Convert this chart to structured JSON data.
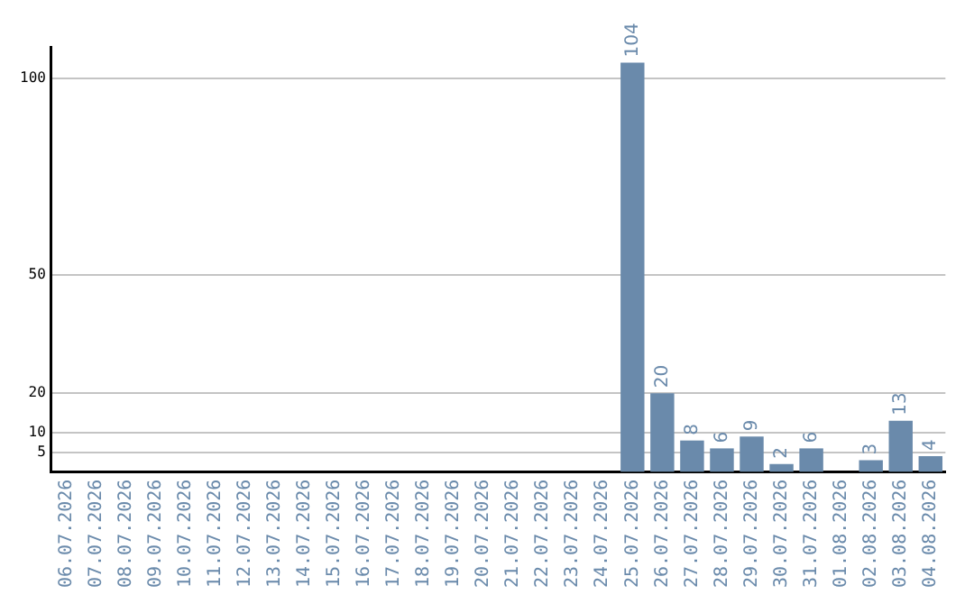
{
  "chart_data": {
    "type": "bar",
    "categories": [
      "06.07.2026",
      "07.07.2026",
      "08.07.2026",
      "09.07.2026",
      "10.07.2026",
      "11.07.2026",
      "12.07.2026",
      "13.07.2026",
      "14.07.2026",
      "15.07.2026",
      "16.07.2026",
      "17.07.2026",
      "18.07.2026",
      "19.07.2026",
      "20.07.2026",
      "21.07.2026",
      "22.07.2026",
      "23.07.2026",
      "24.07.2026",
      "25.07.2026",
      "26.07.2026",
      "27.07.2026",
      "28.07.2026",
      "29.07.2026",
      "30.07.2026",
      "31.07.2026",
      "01.08.2026",
      "02.08.2026",
      "03.08.2026",
      "04.08.2026"
    ],
    "values": [
      0,
      0,
      0,
      0,
      0,
      0,
      0,
      0,
      0,
      0,
      0,
      0,
      0,
      0,
      0,
      0,
      0,
      0,
      0,
      104,
      20,
      8,
      6,
      9,
      2,
      6,
      0,
      3,
      13,
      4
    ],
    "value_labels": [
      null,
      null,
      null,
      null,
      null,
      null,
      null,
      null,
      null,
      null,
      null,
      null,
      null,
      null,
      null,
      null,
      null,
      null,
      null,
      "104",
      "20",
      "8",
      "6",
      "9",
      "2",
      "6",
      null,
      "3",
      "13",
      "4"
    ],
    "color": "#6a8aab",
    "ylim": [
      0,
      108
    ],
    "yticks": [
      5,
      10,
      20,
      50,
      100
    ],
    "grid": "y",
    "legend": false
  }
}
